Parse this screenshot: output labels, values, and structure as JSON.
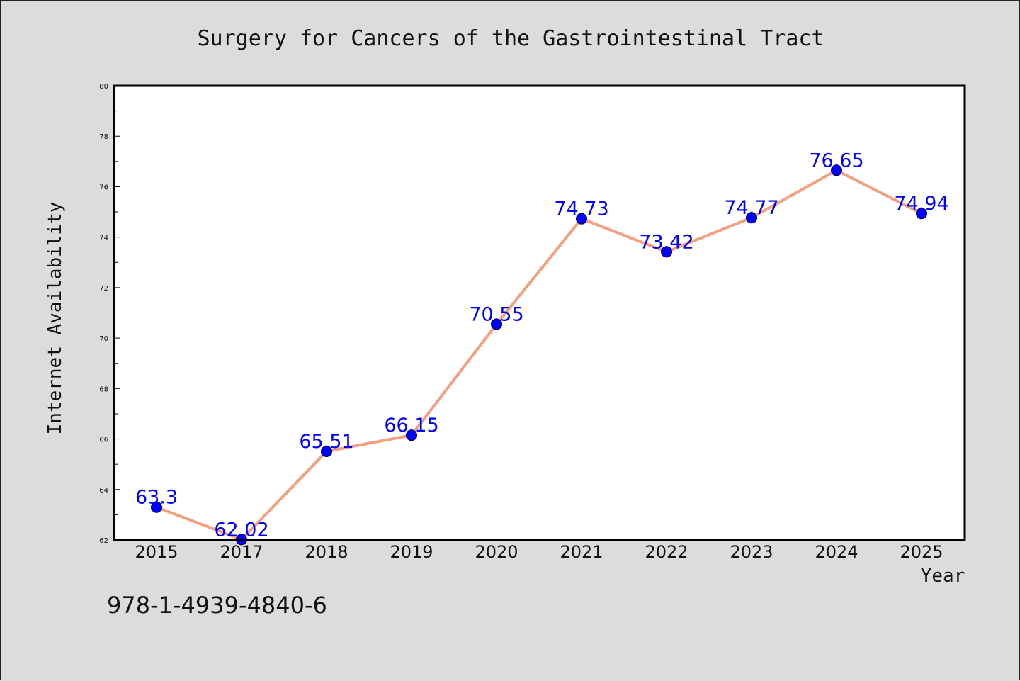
{
  "chart_data": {
    "type": "line",
    "title": "Surgery for Cancers of the Gastrointestinal Tract",
    "xlabel": "Year",
    "ylabel": "Internet Availability",
    "categories": [
      "2015",
      "2017",
      "2018",
      "2019",
      "2020",
      "2021",
      "2022",
      "2023",
      "2024",
      "2025"
    ],
    "series": [
      {
        "values": [
          63.3,
          62.02,
          65.51,
          66.15,
          70.55,
          74.73,
          73.42,
          74.77,
          76.65,
          74.94
        ]
      }
    ],
    "data_labels": [
      "63.3",
      "62.02",
      "65.51",
      "66.15",
      "70.55",
      "74.73",
      "73.42",
      "74.77",
      "76.65",
      "74.94"
    ],
    "ylim": [
      62,
      80
    ],
    "yticks": [
      62,
      64,
      66,
      68,
      70,
      72,
      74,
      76,
      78,
      80
    ],
    "grid": false,
    "line_color": "#f4a07e",
    "marker_color": "#0000ff",
    "data_label_color": "#0000ff",
    "background_color": "#dcdcdc",
    "plot_background_color": "#ffffff"
  },
  "footer_text": "978-1-4939-4840-6"
}
